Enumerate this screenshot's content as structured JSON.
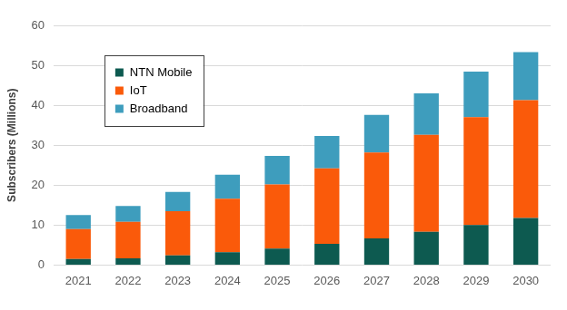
{
  "chart_data": {
    "type": "bar",
    "stacked": true,
    "y_label": "Subscribers (Millions)",
    "categories": [
      "2021",
      "2022",
      "2023",
      "2024",
      "2025",
      "2026",
      "2027",
      "2028",
      "2029",
      "2030"
    ],
    "series": [
      {
        "name": "NTN Mobile",
        "color": "#0d5a50",
        "values": [
          1.5,
          1.7,
          2.4,
          3.2,
          4.1,
          5.3,
          6.7,
          8.3,
          10.0,
          11.8
        ]
      },
      {
        "name": "IoT",
        "color": "#fa5a0a",
        "values": [
          7.5,
          9.1,
          11.1,
          13.4,
          16.1,
          18.9,
          21.5,
          24.3,
          27.0,
          29.5
        ]
      },
      {
        "name": "Broadband",
        "color": "#3e9dbd",
        "values": [
          3.5,
          4.0,
          4.8,
          6.0,
          7.1,
          8.1,
          9.4,
          10.4,
          11.4,
          12.0
        ]
      }
    ],
    "ylim": [
      0,
      60
    ],
    "yticks": [
      0,
      10,
      20,
      30,
      40,
      50,
      60
    ],
    "grid": true,
    "legend": "upper left"
  }
}
